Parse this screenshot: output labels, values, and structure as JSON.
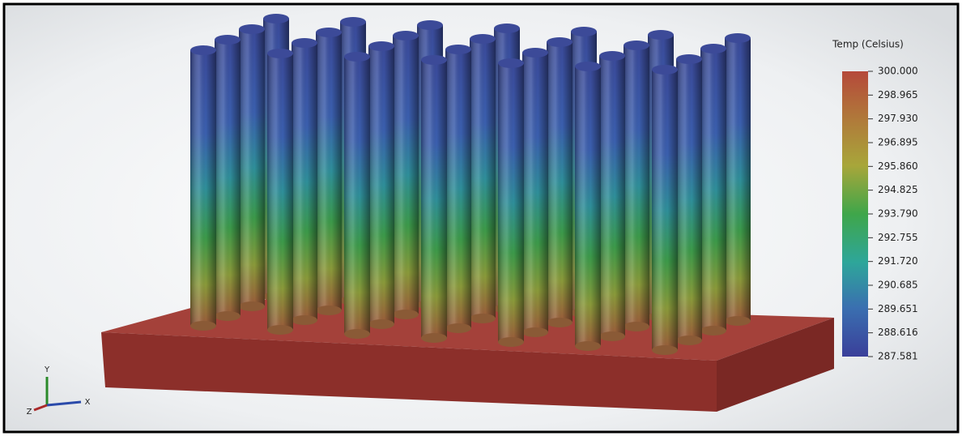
{
  "legend": {
    "title": "Temp (Celsius)",
    "ticks": [
      "300.000",
      "298.965",
      "297.930",
      "296.895",
      "295.860",
      "294.825",
      "293.790",
      "292.755",
      "291.720",
      "290.685",
      "289.651",
      "288.616",
      "287.581"
    ]
  },
  "triad": {
    "y": "Y",
    "x": "X",
    "z": "Z"
  }
}
